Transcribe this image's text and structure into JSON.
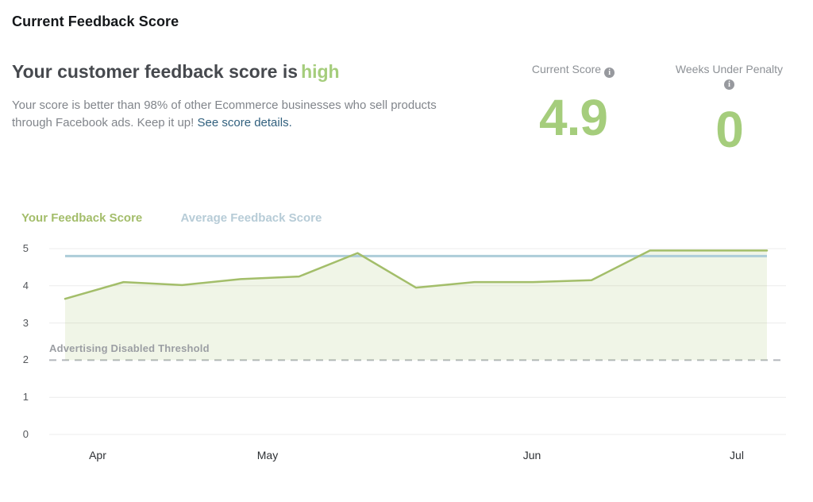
{
  "page": {
    "title": "Current Feedback Score"
  },
  "summary": {
    "headline_prefix": "Your customer feedback score is",
    "headline_status": "high",
    "body_text": "Your score is better than 98% of other Ecommerce businesses who sell products through Facebook ads. Keep it up! ",
    "link_label": "See score details."
  },
  "stats": [
    {
      "label": "Current Score",
      "info_icon": "i",
      "value": "4.9"
    },
    {
      "label": "Weeks Under Penalty",
      "info_icon": "i",
      "value": "0"
    }
  ],
  "colors": {
    "accent_green": "#a5cd7c",
    "line_green": "#a3be6a",
    "fill_green": "rgba(163,191,106,0.16)",
    "line_blue": "#adcdd9",
    "legend_blue": "#b7ccd7",
    "link_blue": "#31607e",
    "gridline": "#ececec",
    "threshold_dash": "#b4b7bc"
  },
  "chart_data": {
    "type": "line",
    "title": "Feedback score over time",
    "x_labels": [
      "Apr",
      "May",
      "Jun",
      "Jul"
    ],
    "ylim": [
      0,
      5
    ],
    "yticks": [
      5,
      4,
      3,
      2,
      1,
      0
    ],
    "grid": true,
    "legend_position": "top-left",
    "series": [
      {
        "name": "Your Feedback Score",
        "color": "#a3be6a",
        "fill_to_threshold": true,
        "values": [
          3.65,
          4.1,
          4.02,
          4.18,
          4.25,
          4.88,
          3.95,
          4.1,
          4.1,
          4.15,
          4.95,
          4.95,
          4.95
        ]
      },
      {
        "name": "Average Feedback Score",
        "color": "#adcdd9",
        "constant": 4.8
      }
    ],
    "threshold": {
      "label": "Advertising Disabled Threshold",
      "value": 2
    }
  }
}
